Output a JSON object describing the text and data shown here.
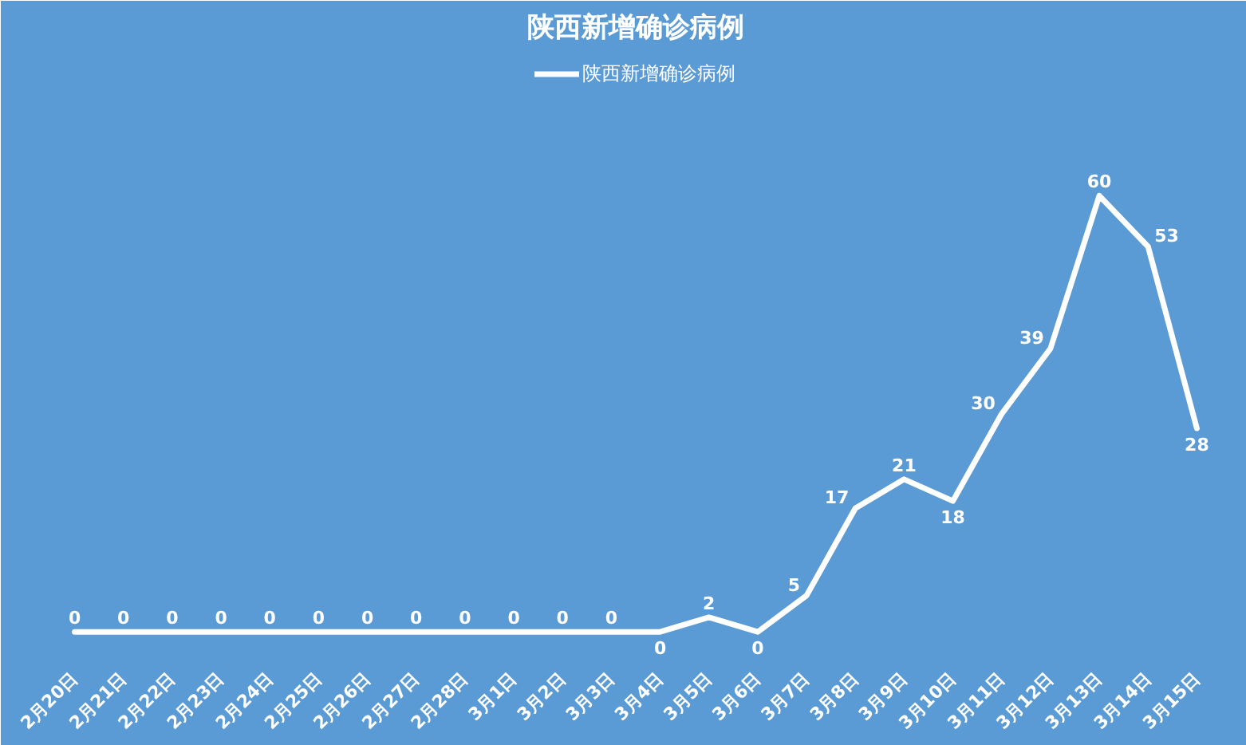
{
  "chart_data": {
    "type": "line",
    "title": "陕西新增确诊病例",
    "categories": [
      "2月20日",
      "2月21日",
      "2月22日",
      "2月23日",
      "2月24日",
      "2月25日",
      "2月26日",
      "2月27日",
      "2月28日",
      "3月1日",
      "3月2日",
      "3月3日",
      "3月4日",
      "3月5日",
      "3月6日",
      "3月7日",
      "3月8日",
      "3月9日",
      "3月10日",
      "3月11日",
      "3月12日",
      "3月13日",
      "3月14日",
      "3月15日"
    ],
    "series": [
      {
        "name": "陕西新增确诊病例",
        "color": "#ffffff",
        "values": [
          0,
          0,
          0,
          0,
          0,
          0,
          0,
          0,
          0,
          0,
          0,
          0,
          0,
          2,
          0,
          5,
          17,
          21,
          18,
          30,
          39,
          60,
          53,
          28
        ]
      }
    ],
    "data_labels": true,
    "legend": "top",
    "tick_labels": "x",
    "marker": "none",
    "line_style": "solid"
  }
}
